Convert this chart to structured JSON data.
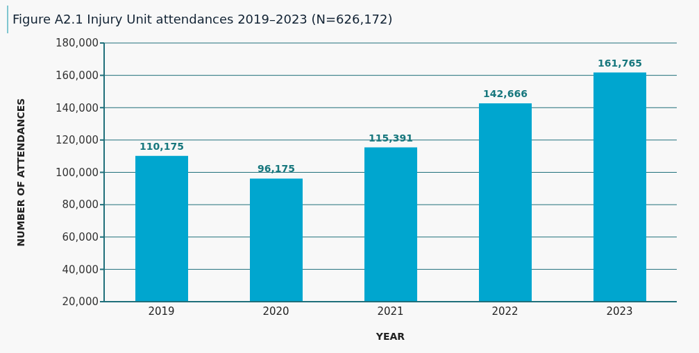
{
  "chart_data": {
    "type": "bar",
    "title": "Figure A2.1 Injury Unit attendances 2019–2023 (N=626,172)",
    "xlabel": "YEAR",
    "ylabel": "NUMBER OF ATTENDANCES",
    "categories": [
      "2019",
      "2020",
      "2021",
      "2022",
      "2023"
    ],
    "series": [
      {
        "color": "#00a6cf",
        "values": [
          110175,
          96175,
          115391,
          142666,
          161765
        ],
        "value_labels": [
          "110,175",
          "96,175",
          "115,391",
          "142,666",
          "161,765"
        ]
      }
    ],
    "ylim": [
      20000,
      180000
    ],
    "yticks": [
      {
        "value": 20000,
        "label": "20,000"
      },
      {
        "value": 40000,
        "label": "40,000"
      },
      {
        "value": 60000,
        "label": "60,000"
      },
      {
        "value": 80000,
        "label": "80,000"
      },
      {
        "value": 100000,
        "label": "100,000"
      },
      {
        "value": 120000,
        "label": "120,000"
      },
      {
        "value": 140000,
        "label": "140,000"
      },
      {
        "value": 160000,
        "label": "160,000"
      },
      {
        "value": 180000,
        "label": "180,000"
      }
    ],
    "grid": "y"
  }
}
